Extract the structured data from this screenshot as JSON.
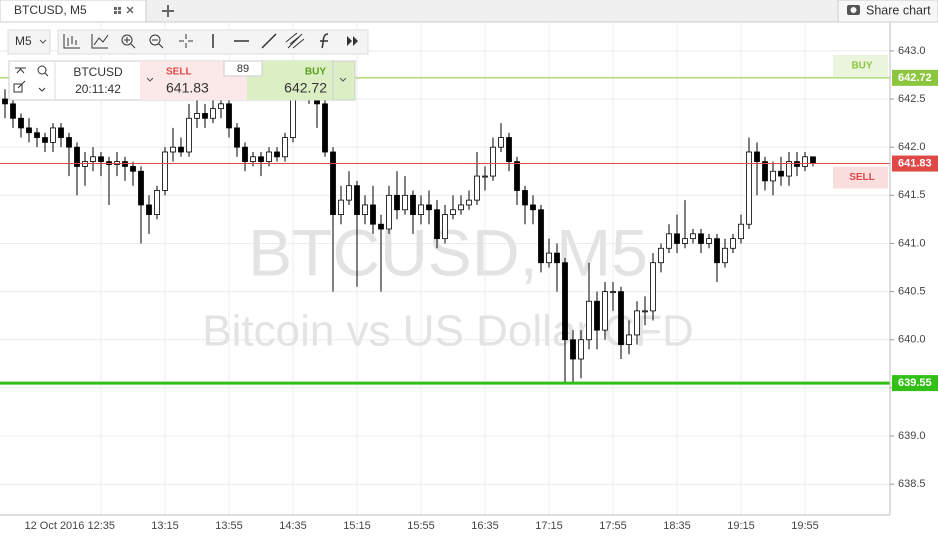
{
  "tab": {
    "title": "BTCUSD, M5",
    "share": "Share chart"
  },
  "toolbar": {
    "interval": "M5"
  },
  "ticker": {
    "symbol": "BTCUSD",
    "time": "20:11:42",
    "sell": "SELL",
    "buy": "BUY",
    "spread": 89
  },
  "chart_data": {
    "type": "candlestick",
    "watermark": "BTCUSD, M5",
    "watermark_sub": "Bitcoin vs US Dollar CFD",
    "categories": [
      null,
      null,
      null,
      null,
      null,
      null,
      null,
      null,
      null,
      null,
      null,
      null,
      "12 Oct 2016 12:35",
      null,
      null,
      null,
      null,
      null,
      null,
      null,
      "13:15",
      null,
      null,
      null,
      null,
      null,
      null,
      null,
      "13:55",
      null,
      null,
      null,
      null,
      null,
      null,
      null,
      "14:35",
      null,
      null,
      null,
      null,
      null,
      null,
      null,
      "15:15",
      null,
      null,
      null,
      null,
      null,
      null,
      null,
      "15:55",
      null,
      null,
      null,
      null,
      null,
      null,
      null,
      "16:35",
      null,
      null,
      null,
      null,
      null,
      null,
      null,
      "17:15",
      null,
      null,
      null,
      null,
      null,
      null,
      null,
      "17:55",
      null,
      null,
      null,
      null,
      null,
      null,
      null,
      "18:35",
      null,
      null,
      null,
      null,
      null,
      null,
      null,
      "19:15",
      null,
      null,
      null,
      null,
      null,
      null,
      null,
      "19:55",
      null
    ],
    "open": [
      642.5,
      642.45,
      642.3,
      642.2,
      642.15,
      642.1,
      642.05,
      642.2,
      642.1,
      642.0,
      641.8,
      641.85,
      641.9,
      641.85,
      641.82,
      641.85,
      641.8,
      641.75,
      641.4,
      641.3,
      641.55,
      641.95,
      642.0,
      641.95,
      642.3,
      642.35,
      642.3,
      642.4,
      642.45,
      642.2,
      642.0,
      641.85,
      641.9,
      641.85,
      641.95,
      641.9,
      642.1,
      642.6,
      642.8,
      642.55,
      642.45,
      641.95,
      641.3,
      641.45,
      641.6,
      641.3,
      641.4,
      641.2,
      641.15,
      641.5,
      641.35,
      641.5,
      641.3,
      641.4,
      641.35,
      641.05,
      641.3,
      641.35,
      641.4,
      641.45,
      641.7,
      641.7,
      642.0,
      642.1,
      641.85,
      641.55,
      641.4,
      641.35,
      640.8,
      640.9,
      640.8,
      640.0,
      639.8,
      640.0,
      640.4,
      640.1,
      640.5,
      640.5,
      639.95,
      640.05,
      640.3,
      640.3,
      640.8,
      640.95,
      641.1,
      641.0,
      641.05,
      641.1,
      641.0,
      641.05,
      640.8,
      640.95,
      641.05,
      641.2,
      641.95,
      641.85,
      641.65,
      641.75,
      641.7,
      641.85,
      641.8,
      641.9
    ],
    "high": [
      642.6,
      642.5,
      642.35,
      642.3,
      642.2,
      642.15,
      642.25,
      642.25,
      642.15,
      642.05,
      641.95,
      642.0,
      641.95,
      641.9,
      641.95,
      641.9,
      641.85,
      641.8,
      641.5,
      641.6,
      642.0,
      642.2,
      642.1,
      642.45,
      642.5,
      642.45,
      642.5,
      642.6,
      642.5,
      642.25,
      642.05,
      641.95,
      641.95,
      642.0,
      642.0,
      642.15,
      642.7,
      642.9,
      642.85,
      642.6,
      642.5,
      642.0,
      641.6,
      641.75,
      641.65,
      641.5,
      641.6,
      641.3,
      641.6,
      641.75,
      641.7,
      641.55,
      641.5,
      641.55,
      641.45,
      641.4,
      641.5,
      641.5,
      641.55,
      641.95,
      641.8,
      642.1,
      642.25,
      642.15,
      641.9,
      641.6,
      641.5,
      641.4,
      641.05,
      641.0,
      640.85,
      640.1,
      640.1,
      640.8,
      640.5,
      640.6,
      640.6,
      640.55,
      640.2,
      640.4,
      640.45,
      640.9,
      641.0,
      641.2,
      641.3,
      641.45,
      641.15,
      641.15,
      641.1,
      641.1,
      641.05,
      641.1,
      641.3,
      642.1,
      642.05,
      641.9,
      641.85,
      641.9,
      641.95,
      641.95,
      641.95,
      641.9
    ],
    "low": [
      642.3,
      642.2,
      642.1,
      642.05,
      642.0,
      641.95,
      641.95,
      642.0,
      641.7,
      641.5,
      641.6,
      641.75,
      641.7,
      641.4,
      641.7,
      641.65,
      641.6,
      641.0,
      641.1,
      641.25,
      641.5,
      641.85,
      641.9,
      641.9,
      642.2,
      642.2,
      642.25,
      642.3,
      642.1,
      641.9,
      641.75,
      641.8,
      641.7,
      641.8,
      641.85,
      641.85,
      642.05,
      642.5,
      642.45,
      642.2,
      641.9,
      640.5,
      641.2,
      641.4,
      640.55,
      641.2,
      641.1,
      640.5,
      641.1,
      641.25,
      641.3,
      641.1,
      641.2,
      641.2,
      640.95,
      641.0,
      641.25,
      641.3,
      641.35,
      641.4,
      641.55,
      641.65,
      641.95,
      641.75,
      641.4,
      641.2,
      641.2,
      640.7,
      640.75,
      640.5,
      639.55,
      639.55,
      639.6,
      639.9,
      639.9,
      640.0,
      640.3,
      639.8,
      639.85,
      639.95,
      640.15,
      640.2,
      640.7,
      640.9,
      640.9,
      640.95,
      641.0,
      640.9,
      640.95,
      640.6,
      640.75,
      640.9,
      641.0,
      641.15,
      641.5,
      641.55,
      641.5,
      641.6,
      641.6,
      641.7,
      641.75,
      641.8
    ],
    "close": [
      642.45,
      642.3,
      642.2,
      642.15,
      642.1,
      642.05,
      642.2,
      642.1,
      642.0,
      641.8,
      641.85,
      641.9,
      641.85,
      641.82,
      641.85,
      641.8,
      641.75,
      641.4,
      641.3,
      641.55,
      641.95,
      642.0,
      641.95,
      642.3,
      642.35,
      642.3,
      642.4,
      642.45,
      642.2,
      642.0,
      641.85,
      641.9,
      641.85,
      641.95,
      641.9,
      642.1,
      642.6,
      642.8,
      642.55,
      642.45,
      641.95,
      641.3,
      641.45,
      641.6,
      641.3,
      641.4,
      641.2,
      641.15,
      641.5,
      641.35,
      641.5,
      641.3,
      641.4,
      641.35,
      641.05,
      641.3,
      641.35,
      641.4,
      641.45,
      641.7,
      641.7,
      642.0,
      642.1,
      641.85,
      641.55,
      641.4,
      641.35,
      640.8,
      640.9,
      640.8,
      640.0,
      639.8,
      640.0,
      640.4,
      640.1,
      640.5,
      640.5,
      639.95,
      640.05,
      640.3,
      640.3,
      640.8,
      640.95,
      641.1,
      641.0,
      641.05,
      641.1,
      641.0,
      641.05,
      640.8,
      640.95,
      641.05,
      641.2,
      641.95,
      641.85,
      641.65,
      641.75,
      641.7,
      641.85,
      641.8,
      641.9,
      641.83
    ],
    "up_color": "#ffffff",
    "down_color": "#000000",
    "ylim": [
      638.18,
      643.3
    ],
    "yticks": [
      {
        "value": 638.5,
        "label": "638.5"
      },
      {
        "value": 639,
        "label": "639.0"
      },
      639.5,
      {
        "value": 640,
        "label": "640.0"
      },
      640.5,
      {
        "value": 641,
        "label": "641.0"
      },
      641.5,
      {
        "value": 642,
        "label": "642.0"
      },
      642.5,
      {
        "value": 643,
        "label": "643.0"
      }
    ],
    "grid": true,
    "lines": [
      {
        "name": "BUY",
        "value": 642.72,
        "color": "#8cc63f",
        "width": 1
      },
      {
        "name": "SELL",
        "value": 641.83,
        "color": "#e04848",
        "width": 1
      },
      {
        "value": 639.55,
        "color": "#33c016",
        "width": 3
      }
    ]
  }
}
